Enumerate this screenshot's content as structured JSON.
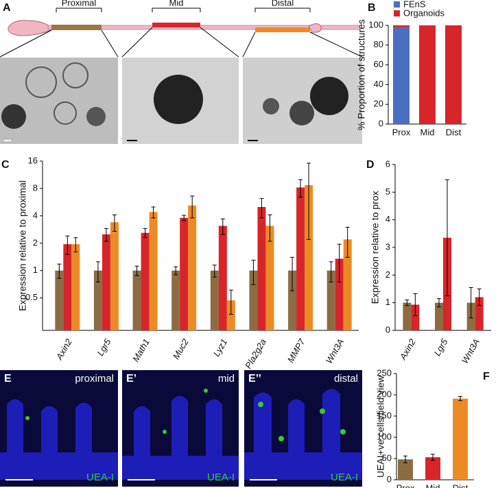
{
  "figure": {
    "panel_labels": {
      "a": "A",
      "b": "B",
      "c": "C",
      "d": "D",
      "f": "F"
    },
    "segments": [
      "Proximal",
      "Mid",
      "Distal"
    ],
    "sections": [
      {
        "letter": "E",
        "region": "proximal",
        "stain": "UEA-I"
      },
      {
        "letter": "E’",
        "region": "mid",
        "stain": "UEA-I"
      },
      {
        "letter": "E’’",
        "region": "distal",
        "stain": "UEA-I"
      }
    ]
  },
  "chart_data": [
    {
      "type": "bar",
      "stacked": true,
      "ylabel": "% Proportion of structures",
      "categories": [
        "Prox",
        "Mid",
        "Dist"
      ],
      "series": [
        {
          "name": "FEnS",
          "color": "#4a6fc0",
          "values": [
            98,
            0,
            0
          ]
        },
        {
          "name": "Organoids",
          "color": "#d7252a",
          "values": [
            2,
            100,
            100
          ]
        }
      ],
      "ylim": [
        0,
        100
      ],
      "yticks": [
        0,
        20,
        40,
        60,
        80,
        100
      ],
      "legend": "top"
    },
    {
      "type": "bar",
      "log": true,
      "ylabel": "Expression relative to proximal",
      "italic_categories": true,
      "categories": [
        "Axin2",
        "Lgr5",
        "Math1",
        "Muc2",
        "Lyz1",
        "Pla2g2a",
        "MMP7",
        "Wnt3A"
      ],
      "series": [
        {
          "color": "#8d6c44",
          "values": [
            1,
            1,
            1,
            1,
            1,
            1,
            1,
            1
          ],
          "errors": [
            0.18,
            0.25,
            0.12,
            0.1,
            0.15,
            0.3,
            0.4,
            0.25
          ]
        },
        {
          "color": "#d7252a",
          "values": [
            1.95,
            2.5,
            2.6,
            3.8,
            3.1,
            5.0,
            8.2,
            1.35
          ],
          "errors": [
            0.45,
            0.4,
            0.3,
            0.25,
            0.6,
            1.2,
            1.8,
            0.6
          ]
        },
        {
          "color": "#ec8b25",
          "values": [
            1.95,
            3.4,
            4.4,
            5.2,
            0.47,
            3.1,
            8.7,
            2.2
          ],
          "errors": [
            0.35,
            0.7,
            0.6,
            1.4,
            0.14,
            1.0,
            6.5,
            0.8
          ]
        }
      ],
      "ylim": [
        0.22,
        16
      ],
      "yticks": [
        0.5,
        1,
        2,
        4,
        8,
        16
      ]
    },
    {
      "type": "bar",
      "ylabel": "Expression relative to prox",
      "italic_categories": true,
      "categories": [
        "Axin2",
        "Lgr5",
        "Wnt3A"
      ],
      "series": [
        {
          "color": "#8d6c44",
          "values": [
            1,
            1,
            1
          ],
          "errors": [
            0.1,
            0.15,
            0.55
          ]
        },
        {
          "color": "#d7252a",
          "values": [
            0.93,
            3.35,
            1.2
          ],
          "errors": [
            0.4,
            2.1,
            0.3
          ]
        }
      ],
      "ylim": [
        0,
        6
      ],
      "yticks": [
        0,
        1,
        2,
        3,
        4,
        5,
        6
      ]
    },
    {
      "type": "bar",
      "ylabel": "UEAI+ve cells/field view",
      "categories": [
        "Prox",
        "Mid",
        "Dist"
      ],
      "series": [
        {
          "colors": [
            "#8d6c44",
            "#d7252a",
            "#ec8b25"
          ],
          "values": [
            48,
            53,
            191
          ],
          "errors": [
            8,
            7,
            5
          ]
        }
      ],
      "ylim": [
        0,
        250
      ],
      "yticks": [
        0,
        50,
        100,
        150,
        200,
        250
      ]
    }
  ]
}
